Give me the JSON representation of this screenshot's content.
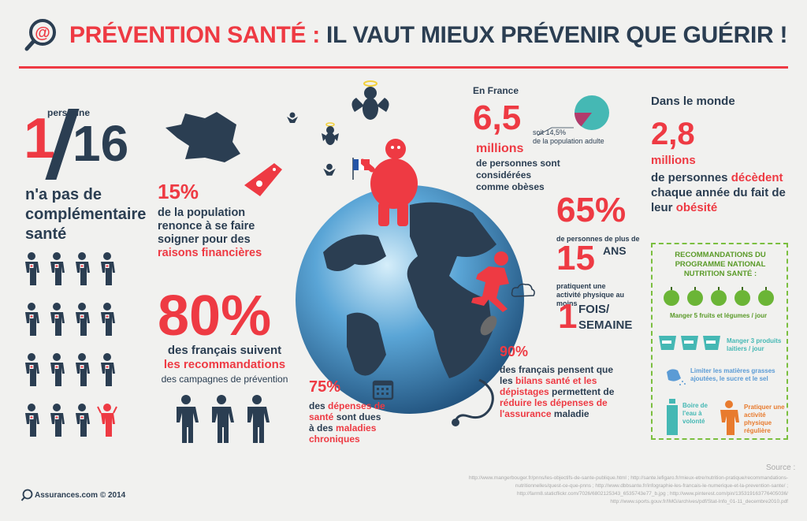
{
  "header": {
    "title_part1": "PRÉVENTION SANTÉ :",
    "title_part2": "IL VAUT MIEUX PRÉVENIR QUE GUÉRIR !"
  },
  "left": {
    "ratio_num": "1",
    "ratio_den": "16",
    "ratio_unit": "personne",
    "ratio_text": "n'a pas de complémentaire santé",
    "pct15": "15%",
    "pct15_text_a": "de la population renonce à se faire soigner pour des",
    "pct15_text_b": "raisons financières",
    "pct80": "80%",
    "pct80_text_a": "des français suivent",
    "pct80_text_b": "les recommandations",
    "pct80_text_c": "des campagnes de prévention"
  },
  "center": {
    "pct75": "75%",
    "pct75_text_a": "des",
    "pct75_text_b": "dépenses de santé",
    "pct75_text_c": "sont dues à des",
    "pct75_text_d": "maladies chroniques"
  },
  "france": {
    "label": "En France",
    "number": "6,5",
    "unit": "millions",
    "text": "de personnes sont considérées comme obèses",
    "pie_note_a": "soit 14,5%",
    "pie_note_b": "de la population adulte",
    "pie_fraction": 0.145
  },
  "sport": {
    "pct": "65%",
    "text_a": "de personnes de plus de",
    "age": "15",
    "age_unit": "ANS",
    "text_b": "pratiquent une activité physique au moins",
    "freq_num": "1",
    "freq_text_a": "FOIS/",
    "freq_text_b": "SEMAINE"
  },
  "bilans": {
    "pct": "90%",
    "t1": "des français pensent que les",
    "t2": "bilans santé et les dépistages",
    "t3": "permettent de",
    "t4": "réduire les dépenses de l'assurance",
    "t5": "maladie"
  },
  "world": {
    "label": "Dans le monde",
    "number": "2,8",
    "unit": "millions",
    "text_a": "de personnes",
    "text_b": "décèdent",
    "text_c": "chaque année du fait de leur",
    "text_d": "obésité"
  },
  "reco": {
    "title": "RECOMMANDATIONS DU PROGRAMME NATIONAL NUTRITION SANTÉ :",
    "fruits": "Manger 5 fruits et légumes / jour",
    "laitiers": "Manger 3 produits laitiers / jour",
    "gras": "Limiter les matières grasses ajoutées, le sucre et le sel",
    "eau": "Boire de l'eau à volonté",
    "activite": "Pratiquer une activité physique régulière"
  },
  "footer": {
    "source_label": "Source :",
    "links": "http://www.mangerbouger.fr/pnns/les-objectifs-de-sante-publique.html ; http://sante.lefigaro.fr/mieux-etre/nutrition-pratique/recommandations-nutritionnelles/quest-ce-que-pnns ; http://www.dbbsante.fr/infographie-les-francais-le-numerique-et-la-prevention-sante/ ; http://farm8.staticflickr.com/7026/6802125343_6535743e77_b.jpg ; http://www.pinterest.com/pin/135319163776405036/ http://www.sports.gouv.fr/IMG/archives/pdf/Stat-Info_01-11_decembre2010.pdf",
    "brand": "Assurances.com © 2014"
  },
  "colors": {
    "red": "#ee3a43",
    "navy": "#2b3e52",
    "green": "#7bbf3f",
    "teal": "#45b8b4",
    "background": "#f1f1ef"
  }
}
